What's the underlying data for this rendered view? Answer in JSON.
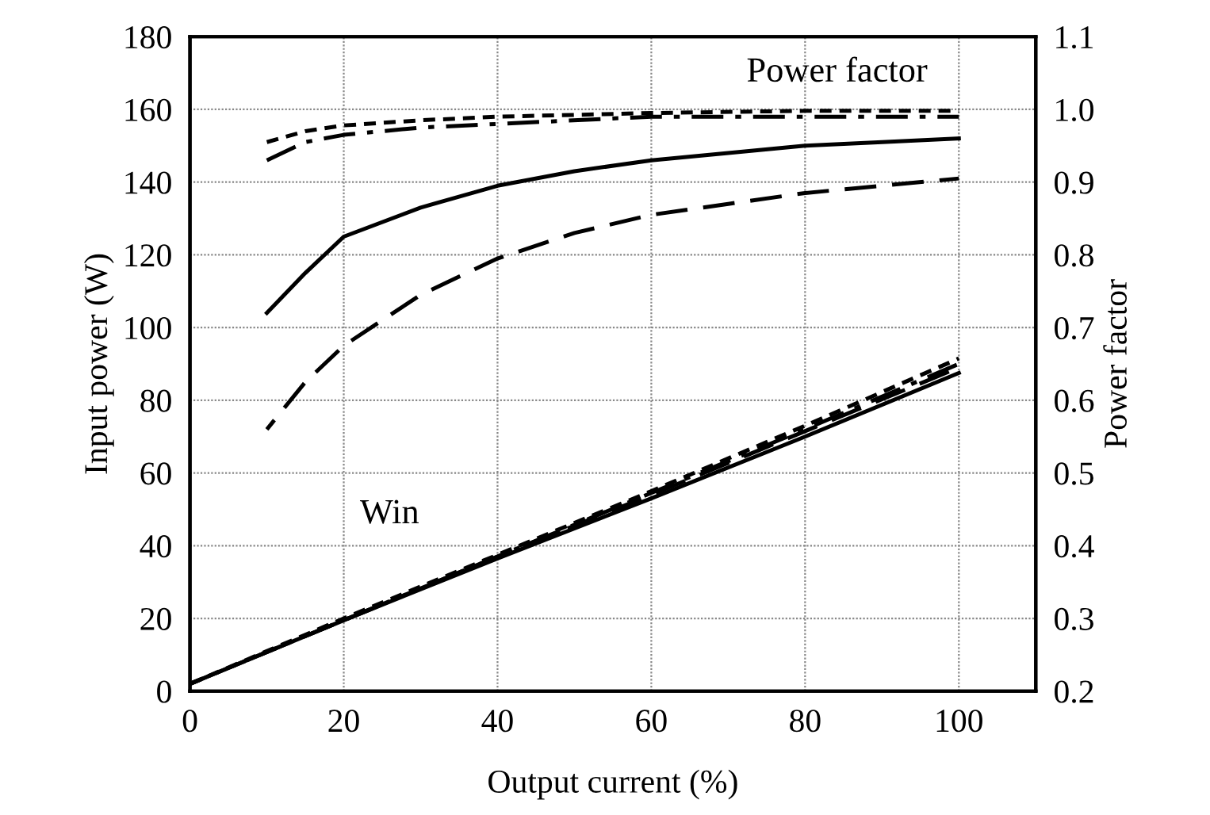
{
  "chart_data": {
    "type": "line",
    "xlabel": "Output current (%)",
    "ylabel": "Input power (W)",
    "y2label": "Power factor",
    "xlim": [
      0,
      110
    ],
    "xticks": [
      0,
      20,
      40,
      60,
      80,
      100,
      {
        "value": 110,
        "label": null
      }
    ],
    "ylim": [
      0,
      180
    ],
    "yticks": [
      0,
      20,
      40,
      60,
      80,
      100,
      120,
      140,
      160,
      180
    ],
    "y2lim": [
      0.2,
      1.1
    ],
    "y2ticks": [
      0.2,
      0.3,
      0.4,
      0.5,
      0.6,
      0.7,
      0.8,
      0.9,
      {
        "value": 1.0,
        "label": "1.0"
      },
      1.1
    ],
    "grid": true,
    "legend": false,
    "marker": "none",
    "annotations": [
      "Power factor",
      "Win"
    ],
    "series": [
      {
        "color": "#000000",
        "line_style": "solid",
        "axis": "y2",
        "x": [
          10,
          15,
          20,
          30,
          40,
          50,
          60,
          70,
          80,
          90,
          100
        ],
        "values": [
          0.72,
          0.775,
          0.825,
          0.865,
          0.895,
          0.915,
          0.93,
          0.94,
          0.95,
          0.955,
          0.96
        ]
      },
      {
        "color": "#000000",
        "line_style": "dashed",
        "axis": "y2",
        "x": [
          10,
          15,
          20,
          30,
          40,
          50,
          60,
          70,
          80,
          90,
          100
        ],
        "values": [
          0.56,
          0.625,
          0.675,
          0.745,
          0.795,
          0.83,
          0.855,
          0.87,
          0.885,
          0.895,
          0.905
        ]
      },
      {
        "color": "#000000",
        "line_style": "dotted",
        "axis": "y2",
        "x": [
          10,
          15,
          20,
          30,
          40,
          60,
          80,
          100
        ],
        "values": [
          0.955,
          0.97,
          0.978,
          0.985,
          0.99,
          0.995,
          0.998,
          0.998
        ]
      },
      {
        "color": "#000000",
        "line_style": "dashdot",
        "axis": "y2",
        "x": [
          10,
          15,
          20,
          30,
          40,
          60,
          80,
          100
        ],
        "values": [
          0.93,
          0.955,
          0.965,
          0.975,
          0.98,
          0.99,
          0.99,
          0.99
        ]
      },
      {
        "color": "#000000",
        "line_style": "solid",
        "x": [
          0,
          20,
          40,
          60,
          80,
          100
        ],
        "values": [
          2,
          19.5,
          36.5,
          53,
          70,
          87.5
        ]
      },
      {
        "color": "#000000",
        "line_style": "dashed",
        "x": [
          0,
          20,
          40,
          60,
          80,
          100
        ],
        "values": [
          2,
          19.5,
          37,
          54,
          71.5,
          89
        ]
      },
      {
        "color": "#000000",
        "line_style": "dotted",
        "x": [
          0,
          20,
          40,
          60,
          80,
          100
        ],
        "values": [
          2,
          20,
          37.5,
          55,
          73,
          91.5
        ]
      },
      {
        "color": "#000000",
        "line_style": "dashdot",
        "x": [
          0,
          20,
          40,
          60,
          80,
          100
        ],
        "values": [
          2,
          19.5,
          37,
          54.5,
          72,
          90
        ]
      }
    ]
  }
}
